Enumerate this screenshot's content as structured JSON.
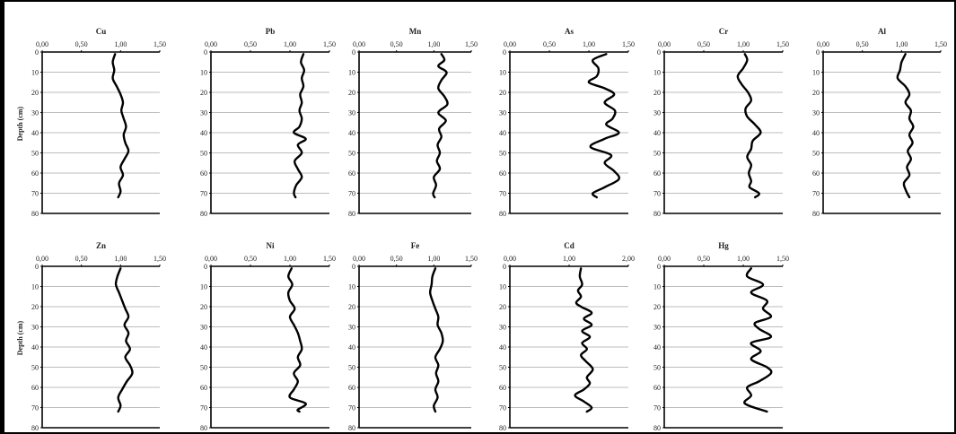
{
  "chart_data": [
    {
      "type": "line",
      "title": "Cu",
      "xticks": [
        "0,00",
        "0,50",
        "1,00",
        "1,50"
      ],
      "xlim": [
        0,
        1.5
      ],
      "ylim": [
        0,
        80
      ],
      "yticks": [
        0,
        10,
        20,
        30,
        40,
        50,
        60,
        70,
        80
      ],
      "ylabel": "Depth (cm)",
      "points": [
        [
          0.93,
          1
        ],
        [
          0.9,
          5
        ],
        [
          0.92,
          9
        ],
        [
          0.9,
          13
        ],
        [
          0.95,
          17
        ],
        [
          1.0,
          21
        ],
        [
          1.03,
          25
        ],
        [
          1.01,
          29
        ],
        [
          1.04,
          33
        ],
        [
          1.07,
          37
        ],
        [
          1.04,
          41
        ],
        [
          1.06,
          45
        ],
        [
          1.1,
          49
        ],
        [
          1.05,
          53
        ],
        [
          1.0,
          57
        ],
        [
          1.03,
          61
        ],
        [
          0.98,
          65
        ],
        [
          1.0,
          69
        ],
        [
          0.97,
          72
        ]
      ]
    },
    {
      "type": "line",
      "title": "Pb",
      "xticks": [
        "0,00",
        "0,50",
        "1,00",
        "1,50"
      ],
      "xlim": [
        0,
        1.5
      ],
      "ylim": [
        0,
        80
      ],
      "yticks": [
        0,
        10,
        20,
        30,
        40,
        50,
        60,
        70,
        80
      ],
      "ylabel": "",
      "points": [
        [
          1.17,
          1
        ],
        [
          1.14,
          5
        ],
        [
          1.18,
          9
        ],
        [
          1.15,
          13
        ],
        [
          1.17,
          17
        ],
        [
          1.13,
          21
        ],
        [
          1.15,
          25
        ],
        [
          1.12,
          29
        ],
        [
          1.15,
          33
        ],
        [
          1.12,
          37
        ],
        [
          1.05,
          40
        ],
        [
          1.2,
          43
        ],
        [
          1.1,
          46
        ],
        [
          1.15,
          50
        ],
        [
          1.06,
          54
        ],
        [
          1.1,
          58
        ],
        [
          1.15,
          62
        ],
        [
          1.08,
          66
        ],
        [
          1.05,
          70
        ],
        [
          1.07,
          72
        ]
      ]
    },
    {
      "type": "line",
      "title": "Mn",
      "xticks": [
        "0,00",
        "0,50",
        "1,00",
        "1,50"
      ],
      "xlim": [
        0,
        1.5
      ],
      "ylim": [
        0,
        80
      ],
      "yticks": [
        0,
        10,
        20,
        30,
        40,
        50,
        60,
        70,
        80
      ],
      "ylabel": "",
      "points": [
        [
          1.1,
          1
        ],
        [
          1.14,
          4
        ],
        [
          1.06,
          7
        ],
        [
          1.17,
          10
        ],
        [
          1.1,
          14
        ],
        [
          1.06,
          18
        ],
        [
          1.14,
          22
        ],
        [
          1.18,
          26
        ],
        [
          1.06,
          30
        ],
        [
          1.16,
          34
        ],
        [
          1.07,
          38
        ],
        [
          1.1,
          42
        ],
        [
          1.05,
          46
        ],
        [
          1.08,
          50
        ],
        [
          1.04,
          54
        ],
        [
          1.08,
          58
        ],
        [
          1.0,
          62
        ],
        [
          1.03,
          66
        ],
        [
          0.99,
          70
        ],
        [
          1.01,
          72
        ]
      ]
    },
    {
      "type": "line",
      "title": "As",
      "xticks": [
        "0,00",
        "0,50",
        "1,00",
        "1,50"
      ],
      "xlim": [
        0,
        1.5
      ],
      "ylim": [
        0,
        80
      ],
      "yticks": [
        0,
        10,
        20,
        30,
        40,
        50,
        60,
        70,
        80
      ],
      "ylabel": "",
      "points": [
        [
          1.22,
          1
        ],
        [
          1.05,
          4
        ],
        [
          1.12,
          8
        ],
        [
          1.1,
          12
        ],
        [
          1.0,
          15
        ],
        [
          1.2,
          18
        ],
        [
          1.32,
          21
        ],
        [
          1.2,
          25
        ],
        [
          1.33,
          29
        ],
        [
          1.3,
          33
        ],
        [
          1.22,
          36
        ],
        [
          1.38,
          40
        ],
        [
          1.2,
          43
        ],
        [
          1.02,
          47
        ],
        [
          1.28,
          51
        ],
        [
          1.2,
          55
        ],
        [
          1.32,
          59
        ],
        [
          1.38,
          63
        ],
        [
          1.2,
          67
        ],
        [
          1.05,
          70
        ],
        [
          1.1,
          72
        ]
      ]
    },
    {
      "type": "line",
      "title": "Cr",
      "xticks": [
        "0,00",
        "0,50",
        "1,00",
        "1,50"
      ],
      "xlim": [
        0,
        1.5
      ],
      "ylim": [
        0,
        80
      ],
      "yticks": [
        0,
        10,
        20,
        30,
        40,
        50,
        60,
        70,
        80
      ],
      "ylabel": "",
      "points": [
        [
          1.02,
          1
        ],
        [
          1.05,
          4
        ],
        [
          1.0,
          8
        ],
        [
          0.93,
          12
        ],
        [
          0.98,
          16
        ],
        [
          1.06,
          20
        ],
        [
          1.1,
          24
        ],
        [
          1.03,
          28
        ],
        [
          1.05,
          32
        ],
        [
          1.15,
          36
        ],
        [
          1.22,
          40
        ],
        [
          1.12,
          44
        ],
        [
          1.1,
          48
        ],
        [
          1.05,
          52
        ],
        [
          1.1,
          56
        ],
        [
          1.07,
          60
        ],
        [
          1.1,
          64
        ],
        [
          1.08,
          67
        ],
        [
          1.2,
          70
        ],
        [
          1.15,
          72
        ]
      ]
    },
    {
      "type": "line",
      "title": "Al",
      "xticks": [
        "0,00",
        "0,50",
        "1,00",
        "1,50"
      ],
      "xlim": [
        0,
        1.5
      ],
      "ylim": [
        0,
        80
      ],
      "yticks": [
        0,
        10,
        20,
        30,
        40,
        50,
        60,
        70,
        80
      ],
      "ylabel": "",
      "points": [
        [
          1.05,
          1
        ],
        [
          1.0,
          5
        ],
        [
          0.98,
          9
        ],
        [
          0.95,
          13
        ],
        [
          1.05,
          17
        ],
        [
          1.1,
          21
        ],
        [
          1.05,
          25
        ],
        [
          1.12,
          29
        ],
        [
          1.1,
          33
        ],
        [
          1.15,
          37
        ],
        [
          1.1,
          41
        ],
        [
          1.14,
          45
        ],
        [
          1.08,
          49
        ],
        [
          1.12,
          53
        ],
        [
          1.07,
          57
        ],
        [
          1.1,
          61
        ],
        [
          1.03,
          65
        ],
        [
          1.06,
          69
        ],
        [
          1.1,
          72
        ]
      ]
    },
    {
      "type": "line",
      "title": "Zn",
      "xticks": [
        "0,00",
        "0,50",
        "1,00",
        "1,50"
      ],
      "xlim": [
        0,
        1.5
      ],
      "ylim": [
        0,
        80
      ],
      "yticks": [
        0,
        10,
        20,
        30,
        40,
        50,
        60,
        70,
        80
      ],
      "ylabel": "Depth (cm)",
      "points": [
        [
          1.0,
          1
        ],
        [
          0.96,
          5
        ],
        [
          0.94,
          9
        ],
        [
          0.98,
          13
        ],
        [
          1.02,
          17
        ],
        [
          1.06,
          21
        ],
        [
          1.1,
          25
        ],
        [
          1.05,
          29
        ],
        [
          1.1,
          33
        ],
        [
          1.07,
          37
        ],
        [
          1.12,
          41
        ],
        [
          1.06,
          45
        ],
        [
          1.12,
          49
        ],
        [
          1.15,
          53
        ],
        [
          1.08,
          57
        ],
        [
          1.02,
          61
        ],
        [
          0.97,
          65
        ],
        [
          1.0,
          69
        ],
        [
          0.97,
          72
        ]
      ]
    },
    {
      "type": "line",
      "title": "Ni",
      "xticks": [
        "0,00",
        "0,50",
        "1,00",
        "1,50"
      ],
      "xlim": [
        0,
        1.5
      ],
      "ylim": [
        0,
        80
      ],
      "yticks": [
        0,
        10,
        20,
        30,
        40,
        50,
        60,
        70,
        80
      ],
      "ylabel": "",
      "points": [
        [
          1.02,
          1
        ],
        [
          0.98,
          5
        ],
        [
          1.03,
          9
        ],
        [
          0.98,
          13
        ],
        [
          1.0,
          17
        ],
        [
          1.06,
          21
        ],
        [
          1.0,
          25
        ],
        [
          1.05,
          29
        ],
        [
          1.1,
          33
        ],
        [
          1.13,
          37
        ],
        [
          1.15,
          41
        ],
        [
          1.1,
          45
        ],
        [
          1.13,
          49
        ],
        [
          1.05,
          53
        ],
        [
          1.1,
          57
        ],
        [
          1.05,
          61
        ],
        [
          1.0,
          65
        ],
        [
          1.2,
          68
        ],
        [
          1.1,
          71
        ],
        [
          1.12,
          72
        ]
      ]
    },
    {
      "type": "line",
      "title": "Fe",
      "xticks": [
        "0,00",
        "0,50",
        "1,00",
        "1,50"
      ],
      "xlim": [
        0,
        1.5
      ],
      "ylim": [
        0,
        80
      ],
      "yticks": [
        0,
        10,
        20,
        30,
        40,
        50,
        60,
        70,
        80
      ],
      "ylabel": "",
      "points": [
        [
          1.02,
          1
        ],
        [
          0.98,
          5
        ],
        [
          0.97,
          9
        ],
        [
          0.95,
          13
        ],
        [
          0.98,
          17
        ],
        [
          1.02,
          21
        ],
        [
          1.06,
          25
        ],
        [
          1.05,
          29
        ],
        [
          1.1,
          33
        ],
        [
          1.12,
          37
        ],
        [
          1.08,
          41
        ],
        [
          1.02,
          45
        ],
        [
          1.06,
          49
        ],
        [
          1.03,
          53
        ],
        [
          1.06,
          57
        ],
        [
          1.02,
          61
        ],
        [
          1.05,
          65
        ],
        [
          1.0,
          69
        ],
        [
          1.02,
          72
        ]
      ]
    },
    {
      "type": "line",
      "title": "Cd",
      "xticks": [
        "0,00",
        "1,00",
        "2,00"
      ],
      "xlim": [
        0,
        2.0
      ],
      "ylim": [
        0,
        80
      ],
      "yticks": [
        0,
        10,
        20,
        30,
        40,
        50,
        60,
        70,
        80
      ],
      "ylabel": "",
      "points": [
        [
          1.2,
          1
        ],
        [
          1.18,
          5
        ],
        [
          1.22,
          9
        ],
        [
          1.15,
          12
        ],
        [
          1.2,
          15
        ],
        [
          1.12,
          18
        ],
        [
          1.2,
          20
        ],
        [
          1.38,
          23
        ],
        [
          1.25,
          26
        ],
        [
          1.38,
          29
        ],
        [
          1.22,
          32
        ],
        [
          1.35,
          35
        ],
        [
          1.22,
          38
        ],
        [
          1.3,
          41
        ],
        [
          1.2,
          44
        ],
        [
          1.28,
          47
        ],
        [
          1.4,
          51
        ],
        [
          1.3,
          55
        ],
        [
          1.35,
          58
        ],
        [
          1.25,
          61
        ],
        [
          1.1,
          64
        ],
        [
          1.25,
          67
        ],
        [
          1.38,
          70
        ],
        [
          1.3,
          72
        ]
      ]
    },
    {
      "type": "line",
      "title": "Hg",
      "xticks": [
        "0,00",
        "0,50",
        "1,00",
        "1,50"
      ],
      "xlim": [
        0,
        1.5
      ],
      "ylim": [
        0,
        80
      ],
      "yticks": [
        0,
        10,
        20,
        30,
        40,
        50,
        60,
        70,
        80
      ],
      "ylabel": "",
      "points": [
        [
          1.1,
          1
        ],
        [
          1.05,
          5
        ],
        [
          1.25,
          9
        ],
        [
          1.1,
          13
        ],
        [
          1.3,
          17
        ],
        [
          1.25,
          21
        ],
        [
          1.35,
          25
        ],
        [
          1.15,
          28
        ],
        [
          1.2,
          31
        ],
        [
          1.35,
          35
        ],
        [
          1.1,
          38
        ],
        [
          1.22,
          42
        ],
        [
          1.1,
          46
        ],
        [
          1.3,
          50
        ],
        [
          1.35,
          53
        ],
        [
          1.2,
          57
        ],
        [
          1.05,
          60
        ],
        [
          1.1,
          64
        ],
        [
          1.02,
          68
        ],
        [
          1.3,
          72
        ]
      ]
    }
  ]
}
